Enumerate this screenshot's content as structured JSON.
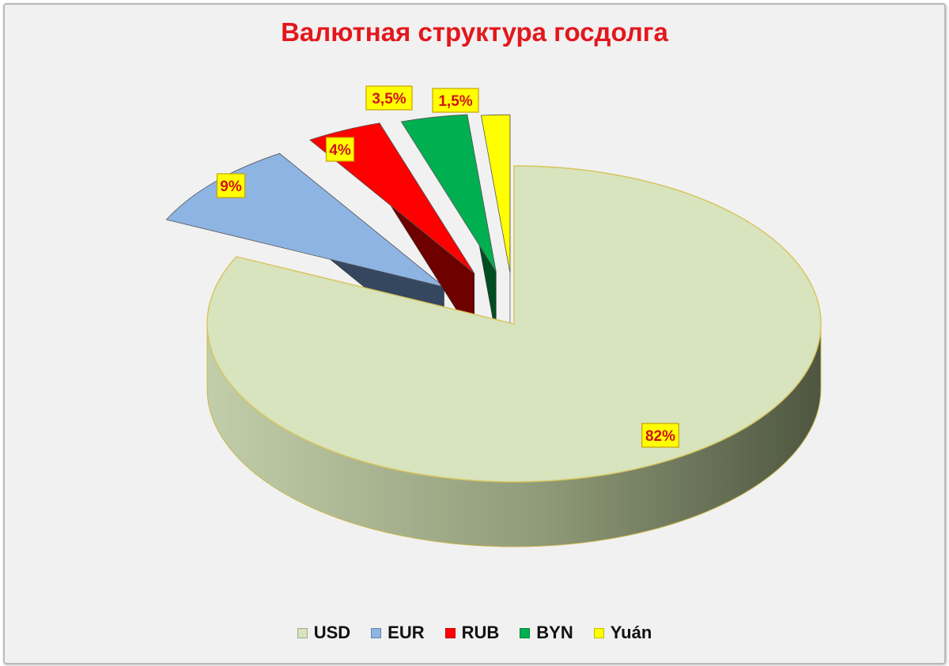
{
  "chart_data": {
    "type": "pie",
    "title": "Валютная структура госдолга",
    "slices": [
      {
        "name": "USD",
        "value": 82,
        "label": "82%",
        "color": "#d7e4bd",
        "side_dark": "#6e7a5c",
        "side_light": "#c2ceaa"
      },
      {
        "name": "EUR",
        "value": 9,
        "label": "9%",
        "color": "#8eb4e3",
        "side_dark": "#35475e",
        "side_light": "#3f556f"
      },
      {
        "name": "RUB",
        "value": 4,
        "label": "4%",
        "color": "#ff0000",
        "side_dark": "#6e0000",
        "side_light": "#800000"
      },
      {
        "name": "BYN",
        "value": 3.5,
        "label": "3,5%",
        "color": "#00b050",
        "side_dark": "#004d22",
        "side_light": "#005a28"
      },
      {
        "name": "Yuán",
        "value": 1.5,
        "label": "1,5%",
        "color": "#ffff00",
        "side_dark": "#6e6a00",
        "side_light": "#807c00"
      }
    ],
    "style": "3d-exploded",
    "legend_position": "bottom",
    "label_box_fill": "#ffff00"
  }
}
